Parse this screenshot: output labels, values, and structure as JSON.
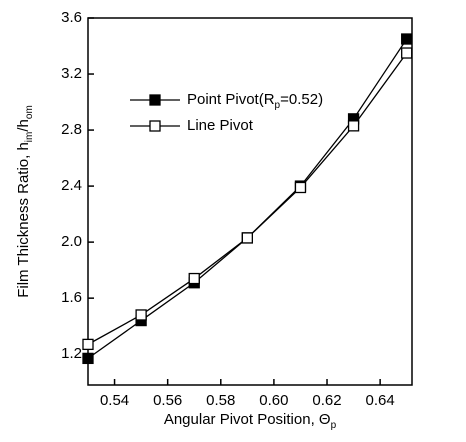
{
  "chart_data": {
    "type": "line",
    "xlabel": [
      "Angular Pivot Position, Θ",
      "p"
    ],
    "ylabel": [
      "Film Thickness Ratio, h",
      "im",
      "/h",
      "om"
    ],
    "x": [
      0.53,
      0.55,
      0.57,
      0.59,
      0.61,
      0.63,
      0.65
    ],
    "series": [
      {
        "name": [
          "Point Pivot(R",
          "p",
          "=0.52)"
        ],
        "color": "#000000",
        "marker": "filled-square",
        "values": [
          1.17,
          1.44,
          1.71,
          2.03,
          2.4,
          2.88,
          3.45
        ]
      },
      {
        "name": [
          "Line Pivot"
        ],
        "color": "#000000",
        "marker": "open-square",
        "values": [
          1.27,
          1.48,
          1.74,
          2.03,
          2.39,
          2.83,
          3.35
        ]
      }
    ],
    "xlim": [
      0.53,
      0.652
    ],
    "ylim": [
      0.98,
      3.6
    ],
    "xticks": [
      0.54,
      0.56,
      0.58,
      {
        "value": 0.6,
        "label": "0.60"
      },
      0.62,
      0.64
    ],
    "yticks": [
      1.2,
      1.6,
      {
        "value": 2.0,
        "label": "2.0"
      },
      2.4,
      2.8,
      3.2,
      3.6
    ],
    "legend": "upper left"
  }
}
